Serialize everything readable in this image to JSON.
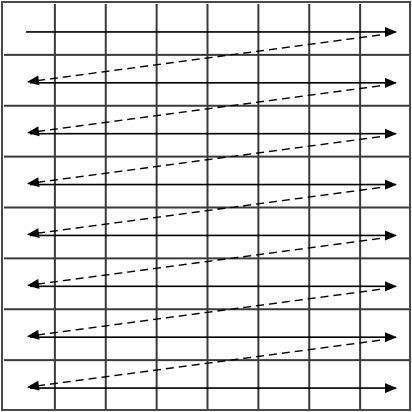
{
  "diagram": {
    "type": "raster-scan-pattern",
    "grid": {
      "columns": 8,
      "rows": 8
    },
    "colors": {
      "background": "#ffffff",
      "grid_line": "#3a3a3a",
      "border": "#4a4a4a",
      "scan_arrow": "#000000",
      "return_arrow": "#000000"
    },
    "scan_lines": {
      "count": 8,
      "direction": "left-to-right",
      "style": "solid"
    },
    "return_lines": {
      "count": 7,
      "direction": "right-to-left-diagonal",
      "style": "dashed"
    }
  }
}
